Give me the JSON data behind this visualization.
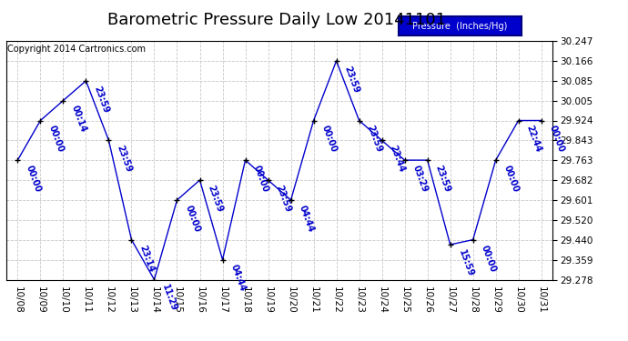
{
  "title": "Barometric Pressure Daily Low 20141101",
  "copyright_text": "Copyright 2014 Cartronics.com",
  "legend_label": "Pressure  (Inches/Hg)",
  "dates": [
    "10/08",
    "10/09",
    "10/10",
    "10/11",
    "10/12",
    "10/13",
    "10/14",
    "10/15",
    "10/16",
    "10/17",
    "10/18",
    "10/19",
    "10/20",
    "10/21",
    "10/22",
    "10/23",
    "10/24",
    "10/25",
    "10/26",
    "10/27",
    "10/28",
    "10/29",
    "10/30",
    "10/31"
  ],
  "values": [
    29.763,
    29.924,
    30.005,
    30.085,
    29.843,
    29.44,
    29.278,
    29.601,
    29.682,
    29.359,
    29.763,
    29.682,
    29.601,
    29.924,
    30.166,
    29.924,
    29.843,
    29.763,
    29.763,
    29.42,
    29.44,
    29.763,
    29.924,
    29.924
  ],
  "time_labels": [
    "00:00",
    "00:00",
    "00:14",
    "23:59",
    "23:59",
    "23:14",
    "11:29",
    "00:00",
    "23:59",
    "04:44",
    "00:00",
    "23:59",
    "04:44",
    "00:00",
    "23:59",
    "23:59",
    "23:44",
    "03:29",
    "23:59",
    "15:59",
    "00:00",
    "00:00",
    "22:44",
    "00:00"
  ],
  "ylim_min": 29.278,
  "ylim_max": 30.247,
  "yticks": [
    29.278,
    29.359,
    29.44,
    29.52,
    29.601,
    29.682,
    29.763,
    29.843,
    29.924,
    30.005,
    30.085,
    30.166,
    30.247
  ],
  "line_color": "#0000CC",
  "marker_color": "#000000",
  "bg_color": "#FFFFFF",
  "grid_color": "#C8C8C8",
  "title_fontsize": 13,
  "tick_fontsize": 7.5,
  "annotation_fontsize": 7,
  "legend_bg": "#0000CC",
  "legend_fg": "#FFFFFF",
  "copyright_fontsize": 7
}
